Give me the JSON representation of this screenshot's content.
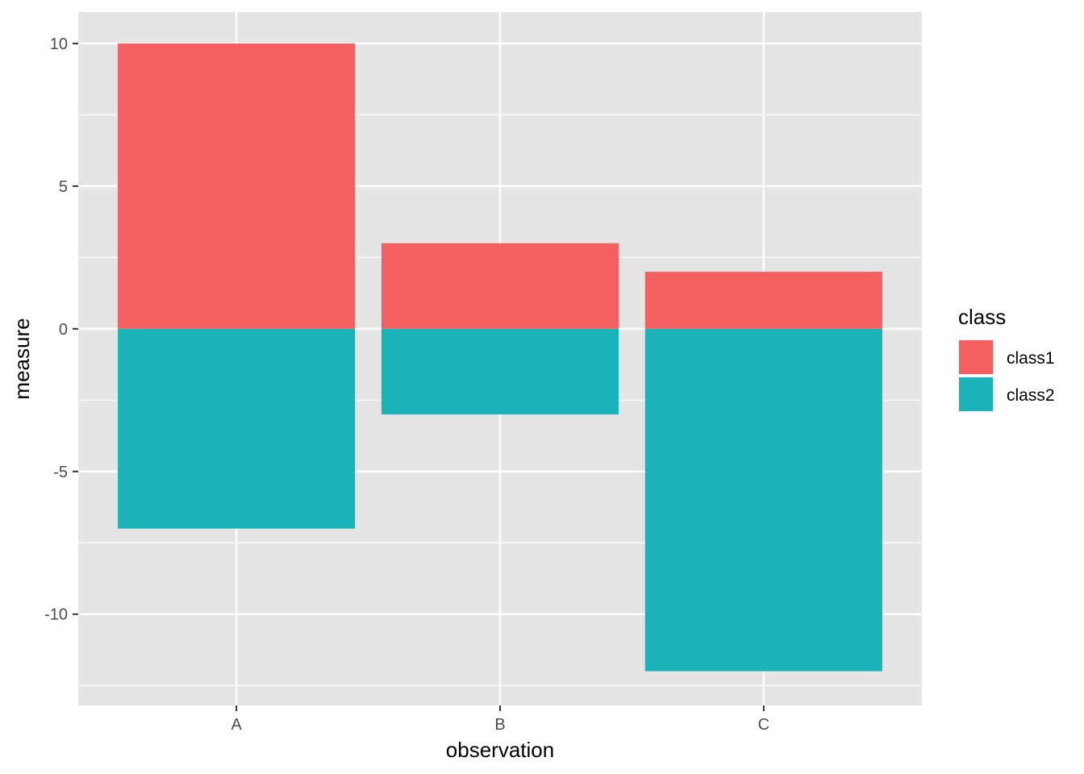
{
  "chart_data": {
    "type": "bar",
    "stacked": true,
    "categories": [
      "A",
      "B",
      "C"
    ],
    "series": [
      {
        "name": "class1",
        "values": [
          10,
          3,
          2
        ],
        "color": "#F46060"
      },
      {
        "name": "class2",
        "values": [
          -7,
          -3,
          -12
        ],
        "color": "#1AB4B8"
      }
    ],
    "xlabel": "observation",
    "ylabel": "measure",
    "ylim": [
      -13.2,
      11.1
    ],
    "yticks": [
      10,
      5,
      0,
      -5,
      -10
    ],
    "ytick_labels": [
      "10",
      "5",
      "0",
      "-5",
      "-10"
    ],
    "legend": {
      "title": "class",
      "position": "right"
    },
    "grid": true,
    "panel_background": "#E5E5E5",
    "grid_color": "#FFFFFF"
  }
}
